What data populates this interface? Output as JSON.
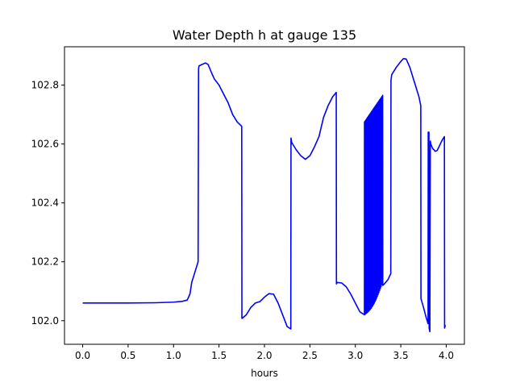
{
  "chart_data": {
    "type": "line",
    "title": "Water Depth h at gauge 135",
    "xlabel": "hours",
    "ylabel": "",
    "xlim": [
      -0.2,
      4.2
    ],
    "ylim": [
      101.92,
      102.93
    ],
    "xticks": [
      0.0,
      0.5,
      1.0,
      1.5,
      2.0,
      2.5,
      3.0,
      3.5,
      4.0
    ],
    "xtick_labels": [
      "0.0",
      "0.5",
      "1.0",
      "1.5",
      "2.0",
      "2.5",
      "3.0",
      "3.5",
      "4.0"
    ],
    "yticks": [
      102.0,
      102.2,
      102.4,
      102.6,
      102.8
    ],
    "ytick_labels": [
      "102.0",
      "102.2",
      "102.4",
      "102.6",
      "102.8"
    ],
    "grid": false,
    "series": [
      {
        "color": "#0000ff",
        "x": [
          0.0,
          0.5,
          0.8,
          1.0,
          1.1,
          1.15,
          1.18,
          1.2,
          1.23,
          1.27,
          1.275,
          1.28,
          1.3,
          1.35,
          1.38,
          1.42,
          1.45,
          1.5,
          1.55,
          1.6,
          1.65,
          1.7,
          1.75,
          1.752,
          1.755,
          1.8,
          1.85,
          1.9,
          1.95,
          2.0,
          2.05,
          2.1,
          2.15,
          2.2,
          2.25,
          2.29,
          2.292,
          2.3,
          2.35,
          2.4,
          2.45,
          2.5,
          2.55,
          2.6,
          2.65,
          2.7,
          2.75,
          2.79,
          2.792,
          2.8,
          2.85,
          2.9,
          2.95,
          3.0,
          3.05,
          3.1,
          3.15,
          3.2,
          3.25,
          3.3,
          3.302,
          3.32,
          3.36,
          3.39,
          3.392,
          3.4,
          3.45,
          3.5,
          3.53,
          3.56,
          3.6,
          3.65,
          3.7,
          3.72,
          3.722,
          3.75,
          3.78,
          3.8,
          3.802,
          3.81,
          3.812,
          3.82,
          3.825,
          3.83,
          3.85,
          3.88,
          3.9,
          3.92,
          3.95,
          3.98,
          3.982,
          3.99
        ],
        "y": [
          102.06,
          102.06,
          102.061,
          102.063,
          102.066,
          102.07,
          102.09,
          102.13,
          102.16,
          102.2,
          102.855,
          102.865,
          102.868,
          102.875,
          102.87,
          102.84,
          102.82,
          102.8,
          102.77,
          102.74,
          102.7,
          102.675,
          102.66,
          102.008,
          102.008,
          102.02,
          102.045,
          102.06,
          102.065,
          102.08,
          102.092,
          102.09,
          102.06,
          102.02,
          101.98,
          101.972,
          102.62,
          102.605,
          102.58,
          102.56,
          102.548,
          102.56,
          102.59,
          102.625,
          102.69,
          102.73,
          102.76,
          102.775,
          102.125,
          102.13,
          102.128,
          102.115,
          102.09,
          102.06,
          102.03,
          102.02,
          102.035,
          102.06,
          102.1,
          102.14,
          102.12,
          102.125,
          102.14,
          102.16,
          102.815,
          102.835,
          102.86,
          102.88,
          102.89,
          102.888,
          102.86,
          102.81,
          102.76,
          102.73,
          102.075,
          102.045,
          102.01,
          101.99,
          102.64,
          102.64,
          101.975,
          101.963,
          102.61,
          102.6,
          102.585,
          102.575,
          102.578,
          102.59,
          102.61,
          102.625,
          101.975,
          101.985
        ]
      }
    ],
    "oscillation_band": {
      "x_start": 3.1,
      "x_end": 3.3,
      "cycles": 24,
      "top_start": 102.675,
      "top_end": 102.765,
      "bottom_start": 102.02,
      "bottom_end": 102.13
    }
  }
}
